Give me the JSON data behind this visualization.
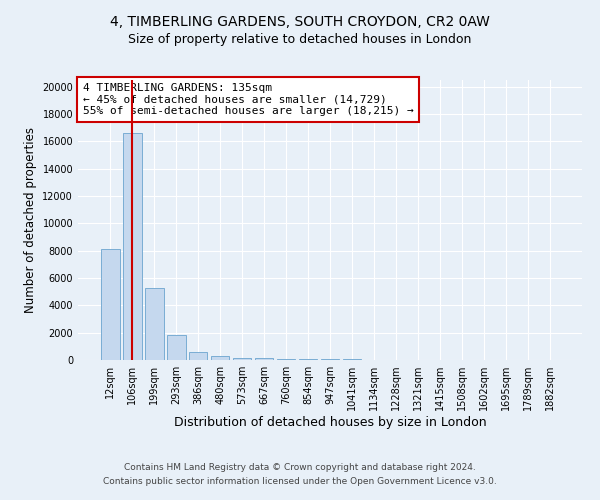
{
  "title1": "4, TIMBERLING GARDENS, SOUTH CROYDON, CR2 0AW",
  "title2": "Size of property relative to detached houses in London",
  "xlabel": "Distribution of detached houses by size in London",
  "ylabel": "Number of detached properties",
  "footnote1": "Contains HM Land Registry data © Crown copyright and database right 2024.",
  "footnote2": "Contains public sector information licensed under the Open Government Licence v3.0.",
  "bar_labels": [
    "12sqm",
    "106sqm",
    "199sqm",
    "293sqm",
    "386sqm",
    "480sqm",
    "573sqm",
    "667sqm",
    "760sqm",
    "854sqm",
    "947sqm",
    "1041sqm",
    "1134sqm",
    "1228sqm",
    "1321sqm",
    "1415sqm",
    "1508sqm",
    "1602sqm",
    "1695sqm",
    "1789sqm",
    "1882sqm"
  ],
  "bar_values": [
    8100,
    16600,
    5300,
    1800,
    620,
    320,
    180,
    120,
    90,
    70,
    50,
    40,
    30,
    25,
    20,
    15,
    12,
    10,
    8,
    6,
    5
  ],
  "bar_color": "#c5d8ee",
  "bar_edge_color": "#7aadd4",
  "vline_x": 1,
  "vline_color": "#cc0000",
  "annotation_text": "4 TIMBERLING GARDENS: 135sqm\n← 45% of detached houses are smaller (14,729)\n55% of semi-detached houses are larger (18,215) →",
  "annotation_box_color": "#cc0000",
  "ylim": [
    0,
    20500
  ],
  "yticks": [
    0,
    2000,
    4000,
    6000,
    8000,
    10000,
    12000,
    14000,
    16000,
    18000,
    20000
  ],
  "bg_color": "#e8f0f8",
  "grid_color": "#ffffff",
  "title1_fontsize": 10,
  "title2_fontsize": 9,
  "annot_fontsize": 8,
  "xlabel_fontsize": 9,
  "ylabel_fontsize": 8.5,
  "tick_fontsize": 7,
  "footnote_fontsize": 6.5
}
